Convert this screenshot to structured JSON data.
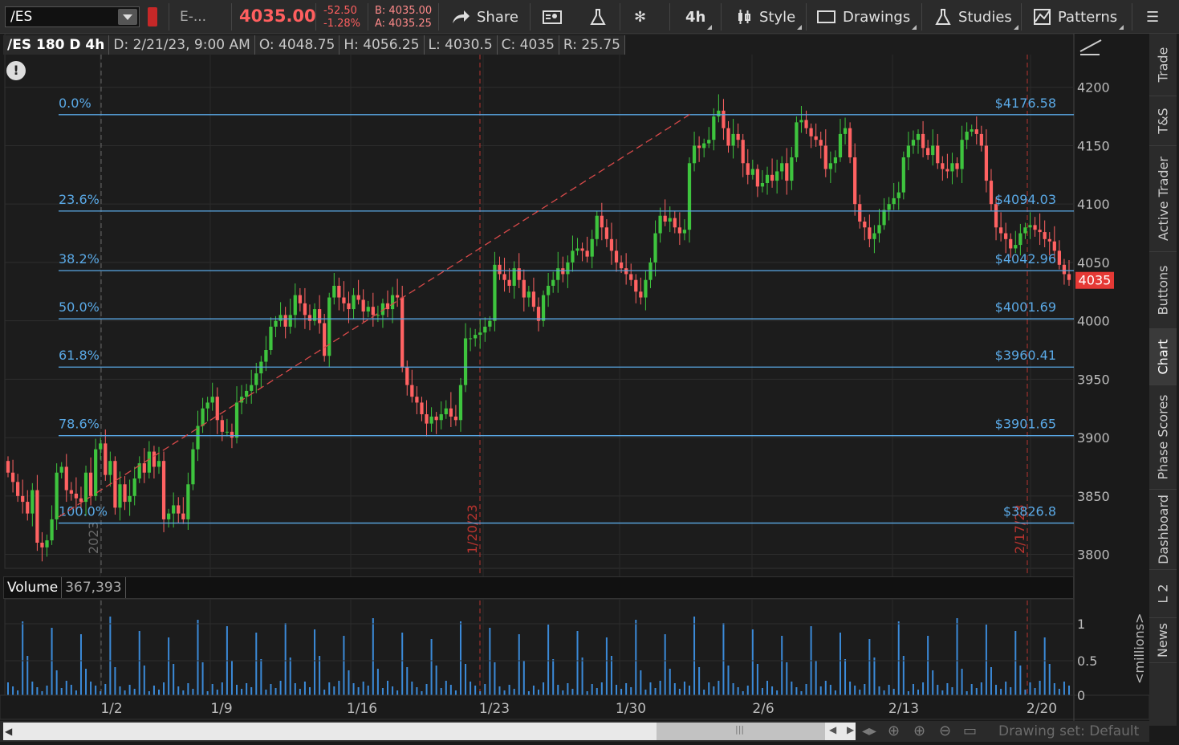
{
  "toolbar": {
    "symbol": "/ES",
    "description": "E-...",
    "last_price": "4035.00",
    "net_change": "-52.50",
    "pct_change": "-1.28%",
    "bid": "B: 4035.00",
    "ask": "A: 4035.25",
    "share_label": "Share",
    "timeframe_label": "4h",
    "style_label": "Style",
    "drawings_label": "Drawings",
    "studies_label": "Studies",
    "patterns_label": "Patterns"
  },
  "chart_header": {
    "symbol_label": "/ES 180 D 4h",
    "date": "D: 2/21/23, 9:00 AM",
    "open": "O: 4048.75",
    "high": "H: 4056.25",
    "low": "L: 4030.5",
    "close": "C: 4035",
    "range": "R: 25.75"
  },
  "alert_icon": "!",
  "volume_header": {
    "label": "Volume",
    "value": "367,393"
  },
  "sidebar_tabs": [
    "Trade",
    "T&S",
    "Active Trader",
    "Buttons",
    "Chart",
    "Phase Scores",
    "Dashboard",
    "L 2",
    "News"
  ],
  "active_sidebar_tab": "Chart",
  "bottom": {
    "drawing_set": "Drawing set: Default"
  },
  "colors": {
    "up": "#3ec43e",
    "down": "#ff6262",
    "fib": "#5aa9e6",
    "volume": "#3b8ad8",
    "background": "#1a1a1a"
  },
  "chart_data": {
    "type": "candlestick",
    "price_axis": {
      "ticks": [
        3800,
        3850,
        3900,
        3950,
        4000,
        4050,
        4100,
        4150,
        4200
      ],
      "range": [
        3788,
        4228
      ]
    },
    "time_axis": {
      "labels": [
        "1/2",
        "1/9",
        "1/16",
        "1/23",
        "1/30",
        "2/6",
        "2/13",
        "2/20"
      ]
    },
    "last_price_tag": "4035",
    "fibonacci": [
      {
        "pct": "0.0%",
        "value": "$4176.58",
        "level": 4176.58
      },
      {
        "pct": "23.6%",
        "value": "$4094.03",
        "level": 4094.03
      },
      {
        "pct": "38.2%",
        "value": "$4042.96",
        "level": 4042.96
      },
      {
        "pct": "50.0%",
        "value": "$4001.69",
        "level": 4001.69
      },
      {
        "pct": "61.8%",
        "value": "$3960.41",
        "level": 3960.41
      },
      {
        "pct": "78.6%",
        "value": "$3901.65",
        "level": 3901.65
      },
      {
        "pct": "100.0%",
        "value": "$3826.8",
        "level": 3826.8
      }
    ],
    "vertical_markers": [
      {
        "label": "2023",
        "style": "gray"
      },
      {
        "label": "1/20/23",
        "style": "red"
      },
      {
        "label": "2/17/23",
        "style": "red"
      }
    ],
    "trendline": {
      "from": 3832,
      "to": 4177,
      "style": "dashed-red"
    },
    "closes": [
      3870,
      3862,
      3850,
      3845,
      3835,
      3855,
      3810,
      3806,
      3812,
      3830,
      3870,
      3875,
      3855,
      3852,
      3848,
      3845,
      3870,
      3850,
      3890,
      3895,
      3868,
      3880,
      3840,
      3860,
      3845,
      3850,
      3865,
      3878,
      3870,
      3888,
      3875,
      3880,
      3830,
      3835,
      3842,
      3835,
      3830,
      3860,
      3890,
      3910,
      3925,
      3930,
      3935,
      3915,
      3905,
      3905,
      3900,
      3930,
      3935,
      3940,
      3945,
      3955,
      3965,
      3975,
      3995,
      4000,
      4005,
      3995,
      4005,
      4022,
      4015,
      4005,
      4000,
      4010,
      3998,
      3970,
      4020,
      4030,
      4020,
      4015,
      4010,
      4022,
      4018,
      4008,
      4012,
      4005,
      4005,
      4015,
      4010,
      4022,
      4020,
      3960,
      3945,
      3935,
      3930,
      3920,
      3912,
      3918,
      3915,
      3920,
      3925,
      3918,
      3915,
      3945,
      3985,
      3985,
      3988,
      3990,
      3995,
      4000,
      4048,
      4040,
      4035,
      4030,
      4045,
      4035,
      4020,
      4025,
      4012,
      4000,
      4022,
      4030,
      4035,
      4045,
      4040,
      4050,
      4060,
      4062,
      4060,
      4055,
      4070,
      4090,
      4080,
      4070,
      4060,
      4050,
      4045,
      4040,
      4035,
      4025,
      4020,
      4035,
      4050,
      4075,
      4090,
      4085,
      4088,
      4080,
      4075,
      4078,
      4135,
      4150,
      4148,
      4152,
      4155,
      4175,
      4180,
      4165,
      4150,
      4160,
      4155,
      4135,
      4125,
      4130,
      4115,
      4118,
      4125,
      4120,
      4128,
      4135,
      4120,
      4140,
      4170,
      4172,
      4165,
      4158,
      4155,
      4150,
      4130,
      4135,
      4140,
      4160,
      4165,
      4140,
      4100,
      4085,
      4080,
      4070,
      4075,
      4082,
      4095,
      4100,
      4105,
      4110,
      4140,
      4150,
      4155,
      4160,
      4148,
      4142,
      4150,
      4135,
      4130,
      4128,
      4135,
      4130,
      4155,
      4162,
      4164,
      4160,
      4150,
      4120,
      4100,
      4080,
      4075,
      4070,
      4062,
      4065,
      4075,
      4080,
      4082,
      4078,
      4076,
      4070,
      4068,
      4060,
      4048,
      4040,
      4035
    ],
    "volume_axis": {
      "ticks": [
        "0",
        "0.5",
        "1"
      ],
      "unit": "<millions>"
    }
  }
}
